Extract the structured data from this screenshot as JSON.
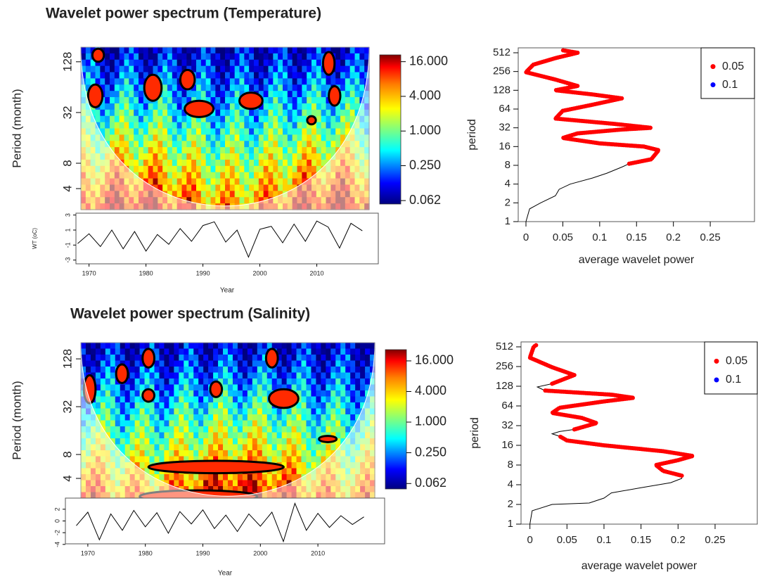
{
  "chart_data": [
    {
      "type": "heatmap",
      "title": "Wavelet power spectrum (Temperature)",
      "ylabel": "Period (month)",
      "log_scale": true,
      "ylim": [
        2.25,
        191
      ],
      "yticks": [
        4,
        8,
        32,
        128
      ],
      "colorbar_lim": [
        0.054,
        21
      ],
      "colorbar_ticks": [
        {
          "value": 16,
          "label": "16.000"
        },
        {
          "value": 4,
          "label": "4.000"
        },
        {
          "value": 1,
          "label": "1.000"
        },
        {
          "value": 0.25,
          "label": "0.250"
        },
        {
          "value": 0.062,
          "label": "0.062"
        }
      ]
    },
    {
      "type": "line",
      "ylabel": "WT (oC)",
      "xlabel": "Year",
      "color": "#000000",
      "xlim": [
        1967.7,
        2020.8
      ],
      "xticks": [
        1970,
        1980,
        1990,
        2000,
        2010
      ],
      "ylim": [
        -3.5,
        3.25
      ],
      "yticks": [
        -3,
        -1,
        1,
        3
      ],
      "x": [
        1968,
        1970,
        1972,
        1974,
        1976,
        1978,
        1980,
        1982,
        1984,
        1986,
        1988,
        1990,
        1992,
        1994,
        1996,
        1998,
        2000,
        2002,
        2004,
        2006,
        2008,
        2010,
        2012,
        2014,
        2016,
        2018
      ],
      "values": [
        -0.8,
        0.5,
        -1.2,
        1.0,
        -1.5,
        0.8,
        -1.8,
        0.4,
        -0.9,
        1.2,
        -0.5,
        1.6,
        2.1,
        -0.6,
        1.0,
        -2.6,
        1.1,
        1.5,
        -0.7,
        1.8,
        -0.5,
        2.2,
        1.4,
        -1.4,
        1.9,
        0.9
      ]
    },
    {
      "type": "line",
      "xlabel": "average wavelet power",
      "ylabel": "period",
      "color": "#000000",
      "log_scale": true,
      "legend": "topright",
      "xlim": [
        -0.0105,
        0.31
      ],
      "xticks": [
        0,
        0.05,
        0.1,
        0.15,
        0.2,
        0.25
      ],
      "ylim": [
        1,
        614
      ],
      "yticks": [
        1,
        2,
        4,
        8,
        16,
        32,
        64,
        128,
        256,
        512
      ],
      "x": [
        0,
        0.005,
        0.02,
        0.04,
        0.045,
        0.06,
        0.09,
        0.11,
        0.13,
        0.14,
        0.17,
        0.18,
        0.16,
        0.1,
        0.05,
        0.07,
        0.13,
        0.17,
        0.12,
        0.04,
        0.05,
        0.09,
        0.13,
        0.09,
        0.04,
        0.07,
        0.04,
        0,
        0.01,
        0.04,
        0.07,
        0.05
      ],
      "values": [
        1,
        1.6,
        2,
        2.6,
        3.3,
        4,
        5,
        6,
        7.5,
        8.5,
        10,
        14,
        16,
        18,
        22,
        26,
        30,
        32,
        37,
        45,
        60,
        75,
        95,
        110,
        128,
        150,
        190,
        250,
        330,
        420,
        512,
        560
      ],
      "series": [
        {
          "name": "0.05",
          "color": "#ff0000",
          "values": [
            null,
            null,
            null,
            null,
            null,
            null,
            null,
            null,
            null,
            8.5,
            10,
            14,
            16,
            18,
            22,
            26,
            30,
            32,
            37,
            45,
            60,
            75,
            95,
            110,
            128,
            150,
            190,
            250,
            330,
            420,
            512,
            560
          ]
        },
        {
          "name": "0.1",
          "color": "#0000ff",
          "values": [
            null,
            null,
            null,
            null,
            null,
            null,
            null,
            null,
            null,
            null,
            null,
            null,
            null,
            null,
            null,
            null,
            null,
            null,
            null,
            null,
            null,
            null,
            null,
            null,
            null,
            null,
            null,
            null,
            null,
            null,
            null,
            null
          ]
        }
      ]
    },
    {
      "type": "heatmap",
      "title": "Wavelet power spectrum (Salinity)",
      "ylabel": "Period (month)",
      "log_scale": true,
      "ylim": [
        2.26,
        205
      ],
      "yticks": [
        4,
        8,
        32,
        128
      ],
      "colorbar_lim": [
        0.0485,
        26.6
      ],
      "colorbar_ticks": [
        {
          "value": 16,
          "label": "16.000"
        },
        {
          "value": 4,
          "label": "4.000"
        },
        {
          "value": 1,
          "label": "1.000"
        },
        {
          "value": 0.25,
          "label": "0.250"
        },
        {
          "value": 0.062,
          "label": "0.062"
        }
      ]
    },
    {
      "type": "line",
      "xlabel": "Year",
      "color": "#000000",
      "xlim": [
        1966.1,
        2021.6
      ],
      "xticks": [
        1970,
        1980,
        1990,
        2000,
        2010
      ],
      "ylim": [
        -3.9,
        3.9
      ],
      "yticks": [
        -4,
        -2,
        0,
        2
      ],
      "x": [
        1968,
        1970,
        1972,
        1974,
        1976,
        1978,
        1980,
        1982,
        1984,
        1986,
        1988,
        1990,
        1992,
        1994,
        1996,
        1998,
        2000,
        2002,
        2004,
        2006,
        2008,
        2010,
        2012,
        2014,
        2016,
        2018
      ],
      "values": [
        -0.8,
        1.5,
        -3.2,
        1.2,
        -1.6,
        1.8,
        -1.0,
        1.4,
        -2.1,
        1.6,
        -0.5,
        1.9,
        -1.3,
        1.0,
        -1.8,
        1.2,
        -0.9,
        1.5,
        -3.5,
        3.0,
        -1.6,
        1.3,
        -1.1,
        0.9,
        -0.6,
        0.7
      ]
    },
    {
      "type": "line",
      "xlabel": "average wavelet power",
      "ylabel": "period",
      "color": "#000000",
      "log_scale": true,
      "legend": "topright",
      "xlim": [
        -0.012,
        0.307
      ],
      "xticks": [
        0,
        0.05,
        0.1,
        0.15,
        0.2,
        0.25
      ],
      "ylim": [
        1,
        609
      ],
      "yticks": [
        1,
        2,
        4,
        8,
        16,
        32,
        64,
        128,
        256,
        512
      ],
      "x": [
        0,
        0.003,
        0.03,
        0.08,
        0.1,
        0.11,
        0.15,
        0.19,
        0.205,
        0.205,
        0.18,
        0.17,
        0.2,
        0.22,
        0.18,
        0.1,
        0.05,
        0.04,
        0.03,
        0.04,
        0.06,
        0.09,
        0.07,
        0.03,
        0.04,
        0.1,
        0.14,
        0.11,
        0.02,
        0.01,
        0.03,
        0.06,
        0.03,
        0,
        0.005,
        0.01
      ],
      "values": [
        1,
        1.6,
        2,
        2.1,
        2.5,
        3,
        3.6,
        4.3,
        5,
        5.5,
        6.5,
        8,
        9.5,
        11,
        13,
        16,
        19,
        22,
        24,
        26,
        28,
        35,
        42,
        50,
        60,
        75,
        85,
        95,
        110,
        125,
        140,
        190,
        250,
        350,
        512,
        560
      ],
      "series": [
        {
          "name": "0.05",
          "color": "#ff0000",
          "values": [
            null,
            null,
            null,
            null,
            null,
            null,
            null,
            null,
            null,
            5.5,
            6.5,
            8,
            9.5,
            11,
            13,
            16,
            19,
            22,
            null,
            null,
            28,
            35,
            42,
            50,
            60,
            75,
            85,
            95,
            110,
            null,
            140,
            190,
            250,
            350,
            512,
            560
          ]
        },
        {
          "name": "0.1",
          "color": "#0000ff",
          "values": [
            null,
            null,
            null,
            null,
            null,
            null,
            null,
            null,
            null,
            null,
            null,
            null,
            null,
            null,
            null,
            null,
            null,
            null,
            null,
            null,
            null,
            null,
            null,
            null,
            null,
            null,
            null,
            null,
            null,
            null,
            null,
            null,
            null,
            null,
            null,
            null
          ]
        }
      ]
    }
  ]
}
